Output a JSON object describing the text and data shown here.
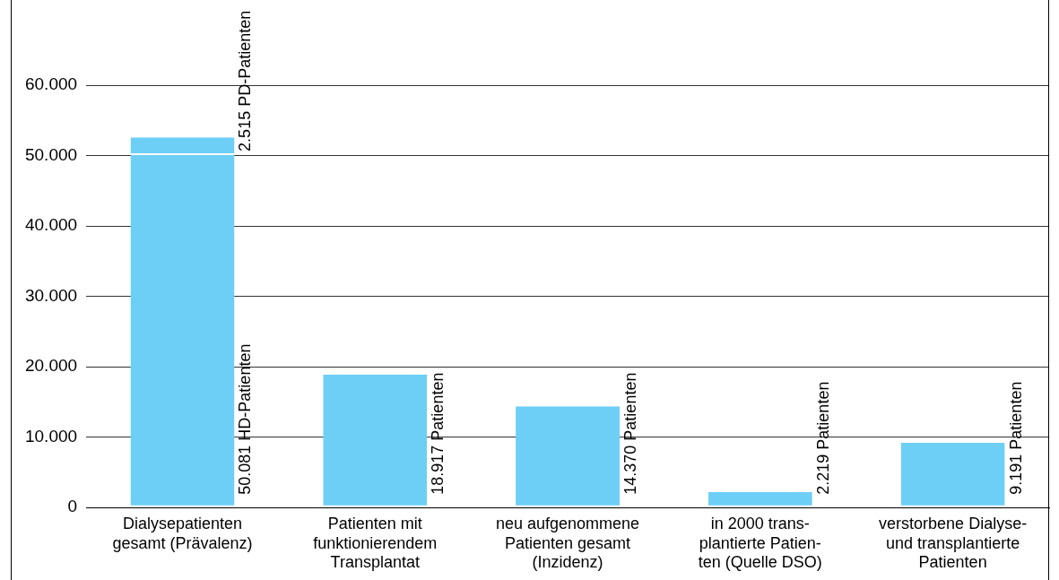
{
  "chart_data": {
    "type": "bar",
    "stacked": true,
    "categories": [
      "Dialysepatienten\ngesamt (Prävalenz)",
      "Patienten mit\nfunktionierendem\nTransplantat",
      "neu aufgenommene\nPatienten gesamt\n(Inzidenz)",
      "in 2000 trans-\nplantierte Patien-\nten (Quelle DSO)",
      "verstorbene Dialyse-\nund transplantierte\nPatienten"
    ],
    "series": [
      {
        "color": "#6dcff6",
        "values": [
          50081,
          18917,
          14370,
          2219,
          9191
        ],
        "value_labels": [
          "50.081 HD-Patienten",
          "18.917 Patienten",
          "14.370 Patienten",
          "2.219 Patienten",
          "9.191 Patienten"
        ]
      },
      {
        "color": "#6dcff6",
        "values": [
          2515,
          null,
          null,
          null,
          null
        ],
        "value_labels": [
          "2.515 PD-Patienten",
          null,
          null,
          null,
          null
        ]
      }
    ],
    "ylim": [
      0,
      60000
    ],
    "yticks": [
      {
        "value": 0,
        "label": "0"
      },
      {
        "value": 10000,
        "label": "10.000"
      },
      {
        "value": 20000,
        "label": "20.000"
      },
      {
        "value": 30000,
        "label": "30.000"
      },
      {
        "value": 40000,
        "label": "40.000"
      },
      {
        "value": 50000,
        "label": "50.000"
      },
      {
        "value": 60000,
        "label": "60.000"
      }
    ],
    "grid": "y",
    "legend": false
  }
}
